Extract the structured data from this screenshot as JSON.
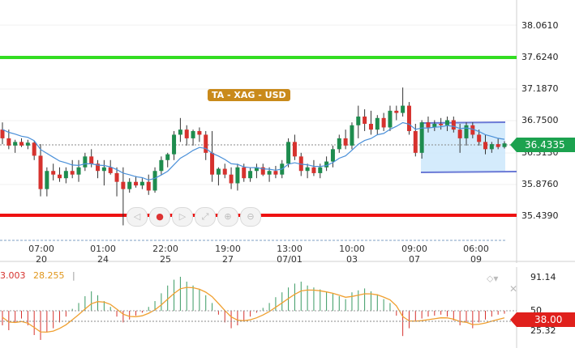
{
  "chart": {
    "title_badge": "TA - XAG - USD",
    "price_axis": [
      "38.0610",
      "37.6240",
      "37.1870",
      "36.7500",
      "36.3130",
      "35.8760",
      "35.4390"
    ],
    "current_price": "36.4335",
    "time_axis": [
      {
        "top": "07:00",
        "bottom": "20"
      },
      {
        "top": "01:00",
        "bottom": "24"
      },
      {
        "top": "22:00",
        "bottom": "25"
      },
      {
        "top": "19:00",
        "bottom": "27"
      },
      {
        "top": "13:00",
        "bottom": "07/01"
      },
      {
        "top": "10:00",
        "bottom": "03"
      },
      {
        "top": "09:00",
        "bottom": "07"
      },
      {
        "top": "06:00",
        "bottom": "09"
      }
    ],
    "support_level": 35.439,
    "resistance_level": 37.624,
    "colors": {
      "up": "#1e8c4e",
      "down": "#d6322e",
      "ma": "#4a90d9",
      "support": "#ee1111",
      "resistance": "#33dd22",
      "channel": "#cce7fb"
    }
  },
  "oscillator": {
    "value1": "3.003",
    "value2": "28.255",
    "axis": [
      "91.14",
      "50",
      "25.32"
    ],
    "current": "38.00"
  },
  "nav": {
    "buttons": [
      "◁",
      "●",
      "▷",
      "⤢",
      "⊕",
      "⊖"
    ]
  },
  "chart_data": {
    "type": "candlestick",
    "ylim": [
      35.3,
      38.2
    ],
    "candles": [
      [
        36.62,
        36.72,
        36.42,
        36.5
      ],
      [
        36.5,
        36.62,
        36.35,
        36.4
      ],
      [
        36.4,
        36.48,
        36.3,
        36.45
      ],
      [
        36.45,
        36.5,
        36.38,
        36.4
      ],
      [
        36.4,
        36.48,
        36.35,
        36.44
      ],
      [
        36.44,
        36.46,
        36.2,
        36.26
      ],
      [
        36.26,
        36.42,
        35.7,
        35.8
      ],
      [
        35.8,
        36.1,
        35.7,
        36.05
      ],
      [
        36.05,
        36.15,
        35.92,
        36.0
      ],
      [
        36.0,
        36.1,
        35.9,
        35.95
      ],
      [
        35.95,
        36.1,
        35.88,
        36.05
      ],
      [
        36.05,
        36.2,
        35.95,
        36.0
      ],
      [
        36.0,
        36.2,
        35.9,
        36.1
      ],
      [
        36.1,
        36.3,
        36.05,
        36.25
      ],
      [
        36.25,
        36.35,
        36.1,
        36.15
      ],
      [
        36.15,
        36.2,
        35.95,
        36.05
      ],
      [
        36.05,
        36.2,
        35.85,
        36.1
      ],
      [
        36.1,
        36.2,
        36.0,
        36.02
      ],
      [
        36.02,
        36.1,
        35.7,
        35.9
      ],
      [
        35.9,
        36.1,
        35.3,
        35.8
      ],
      [
        35.8,
        35.95,
        35.75,
        35.9
      ],
      [
        35.9,
        35.98,
        35.82,
        35.85
      ],
      [
        35.85,
        35.95,
        35.8,
        35.9
      ],
      [
        35.9,
        36.0,
        35.72,
        35.78
      ],
      [
        35.78,
        36.1,
        35.75,
        36.05
      ],
      [
        36.05,
        36.25,
        36.0,
        36.2
      ],
      [
        36.2,
        36.3,
        36.1,
        36.28
      ],
      [
        36.28,
        36.6,
        36.2,
        36.55
      ],
      [
        36.55,
        36.78,
        36.45,
        36.62
      ],
      [
        36.62,
        36.68,
        36.4,
        36.5
      ],
      [
        36.5,
        36.62,
        36.4,
        36.6
      ],
      [
        36.6,
        36.65,
        36.45,
        36.55
      ],
      [
        36.55,
        36.6,
        36.2,
        36.3
      ],
      [
        36.3,
        36.6,
        35.9,
        36.0
      ],
      [
        36.0,
        36.1,
        35.85,
        36.08
      ],
      [
        36.08,
        36.15,
        35.95,
        36.0
      ],
      [
        36.0,
        36.1,
        35.8,
        35.88
      ],
      [
        35.88,
        36.15,
        35.78,
        36.1
      ],
      [
        36.1,
        36.15,
        35.9,
        35.95
      ],
      [
        35.95,
        36.1,
        35.9,
        36.05
      ],
      [
        36.05,
        36.15,
        35.95,
        36.1
      ],
      [
        36.1,
        36.15,
        35.98,
        36.0
      ],
      [
        36.0,
        36.1,
        35.9,
        36.05
      ],
      [
        36.05,
        36.12,
        35.95,
        36.0
      ],
      [
        36.0,
        36.2,
        35.95,
        36.15
      ],
      [
        36.15,
        36.5,
        36.1,
        36.45
      ],
      [
        36.45,
        36.55,
        36.2,
        36.25
      ],
      [
        36.25,
        36.3,
        35.98,
        36.05
      ],
      [
        36.05,
        36.15,
        35.95,
        36.1
      ],
      [
        36.1,
        36.2,
        35.98,
        36.02
      ],
      [
        36.02,
        36.15,
        35.95,
        36.1
      ],
      [
        36.1,
        36.25,
        36.05,
        36.18
      ],
      [
        36.18,
        36.4,
        36.1,
        36.35
      ],
      [
        36.35,
        36.55,
        36.3,
        36.5
      ],
      [
        36.5,
        36.62,
        36.35,
        36.4
      ],
      [
        36.4,
        36.72,
        36.35,
        36.68
      ],
      [
        36.68,
        36.95,
        36.5,
        36.8
      ],
      [
        36.8,
        36.9,
        36.6,
        36.7
      ],
      [
        36.7,
        36.88,
        36.55,
        36.62
      ],
      [
        36.62,
        36.82,
        36.55,
        36.78
      ],
      [
        36.78,
        36.85,
        36.6,
        36.65
      ],
      [
        36.65,
        36.95,
        36.6,
        36.88
      ],
      [
        36.88,
        36.95,
        36.75,
        36.85
      ],
      [
        36.85,
        37.2,
        36.8,
        36.95
      ],
      [
        36.95,
        37.0,
        36.55,
        36.6
      ],
      [
        36.6,
        36.7,
        36.25,
        36.3
      ],
      [
        36.3,
        36.75,
        36.22,
        36.72
      ],
      [
        36.72,
        36.8,
        36.58,
        36.65
      ],
      [
        36.65,
        36.75,
        36.6,
        36.7
      ],
      [
        36.7,
        36.78,
        36.62,
        36.68
      ],
      [
        36.68,
        36.8,
        36.6,
        36.75
      ],
      [
        36.75,
        36.8,
        36.58,
        36.62
      ],
      [
        36.62,
        36.7,
        36.3,
        36.5
      ],
      [
        36.5,
        36.72,
        36.4,
        36.68
      ],
      [
        36.68,
        36.72,
        36.5,
        36.55
      ],
      [
        36.55,
        36.62,
        36.4,
        36.45
      ],
      [
        36.45,
        36.55,
        36.28,
        36.35
      ],
      [
        36.35,
        36.45,
        36.3,
        36.42
      ],
      [
        36.42,
        36.5,
        36.35,
        36.38
      ],
      [
        36.38,
        36.46,
        36.36,
        36.43
      ]
    ],
    "oscillator_bars": [
      -1.5,
      -2.0,
      -1.2,
      -0.8,
      -1.5,
      -2.5,
      -3.0,
      -2.2,
      -1.8,
      -1.2,
      -0.6,
      0.2,
      0.8,
      1.5,
      2.0,
      1.6,
      1.0,
      0.4,
      -0.6,
      -1.2,
      -0.9,
      -0.5,
      -0.2,
      0.4,
      1.0,
      1.8,
      2.6,
      3.2,
      3.5,
      3.0,
      2.6,
      2.2,
      1.6,
      0.8,
      -0.4,
      -1.2,
      -1.8,
      -1.5,
      -1.0,
      -0.6,
      -0.2,
      0.3,
      0.8,
      1.4,
      1.9,
      2.4,
      2.8,
      3.0,
      2.6,
      2.4,
      2.2,
      2.0,
      1.8,
      1.5,
      1.2,
      1.9,
      2.1,
      2.3,
      2.0,
      1.7,
      1.2,
      0.8,
      -0.5,
      -2.6,
      -1.8,
      -1.0,
      -0.8,
      -0.6,
      -0.5,
      -0.4,
      -0.6,
      -1.0,
      -1.5,
      -1.2,
      -1.8,
      -1.2,
      -0.9,
      -0.6,
      -0.4,
      -0.3
    ]
  }
}
